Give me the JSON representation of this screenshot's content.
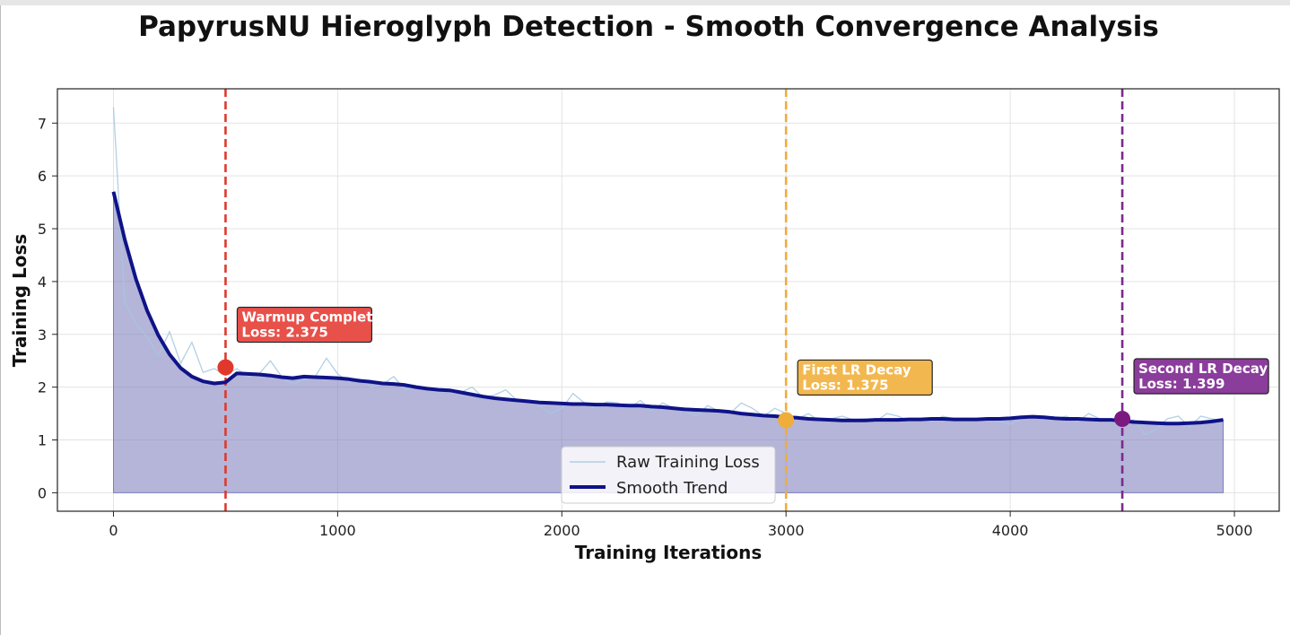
{
  "chart_data": {
    "type": "line",
    "title": "PapyrusNU Hieroglyph Detection - Smooth Convergence Analysis",
    "xlabel": "Training Iterations",
    "ylabel": "Training Loss",
    "xlim": [
      -250,
      5200
    ],
    "ylim": [
      -0.35,
      7.65
    ],
    "xticks": [
      0,
      1000,
      2000,
      3000,
      4000,
      5000
    ],
    "yticks": [
      0,
      1,
      2,
      3,
      4,
      5,
      6,
      7
    ],
    "grid": true,
    "legend_position": "lower-center",
    "series": [
      {
        "name": "Raw Training Loss",
        "color": "#a6c8e0",
        "x": [
          0,
          50,
          100,
          150,
          200,
          250,
          300,
          350,
          400,
          450,
          500,
          550,
          600,
          650,
          700,
          750,
          800,
          850,
          900,
          950,
          1000,
          1050,
          1100,
          1150,
          1200,
          1250,
          1300,
          1350,
          1400,
          1450,
          1500,
          1550,
          1600,
          1650,
          1700,
          1750,
          1800,
          1850,
          1900,
          1950,
          2000,
          2050,
          2100,
          2150,
          2200,
          2250,
          2300,
          2350,
          2400,
          2450,
          2500,
          2550,
          2600,
          2650,
          2700,
          2750,
          2800,
          2850,
          2900,
          2950,
          3000,
          3050,
          3100,
          3150,
          3200,
          3250,
          3300,
          3350,
          3400,
          3450,
          3500,
          3550,
          3600,
          3650,
          3700,
          3750,
          3800,
          3850,
          3900,
          3950,
          4000,
          4050,
          4100,
          4150,
          4200,
          4250,
          4300,
          4350,
          4400,
          4450,
          4500,
          4550,
          4600,
          4650,
          4700,
          4750,
          4800,
          4850,
          4900,
          4950
        ],
        "values": [
          7.3,
          3.6,
          3.2,
          2.95,
          2.6,
          3.05,
          2.45,
          2.85,
          2.28,
          2.35,
          2.22,
          2.35,
          2.2,
          2.25,
          2.5,
          2.2,
          2.05,
          2.15,
          2.2,
          2.55,
          2.25,
          2.1,
          2.15,
          2.0,
          2.05,
          2.2,
          1.95,
          2.0,
          1.95,
          1.9,
          1.95,
          1.9,
          2.0,
          1.8,
          1.85,
          1.95,
          1.75,
          1.72,
          1.65,
          1.5,
          1.6,
          1.88,
          1.7,
          1.6,
          1.72,
          1.7,
          1.6,
          1.75,
          1.55,
          1.7,
          1.6,
          1.55,
          1.45,
          1.65,
          1.55,
          1.5,
          1.7,
          1.6,
          1.45,
          1.6,
          1.5,
          1.4,
          1.5,
          1.35,
          1.4,
          1.45,
          1.38,
          1.4,
          1.35,
          1.5,
          1.45,
          1.35,
          1.38,
          1.35,
          1.45,
          1.4,
          1.35,
          1.38,
          1.42,
          1.35,
          1.3,
          1.4,
          1.45,
          1.38,
          1.4,
          1.45,
          1.35,
          1.5,
          1.4,
          1.35,
          1.3,
          1.38,
          1.1,
          1.2,
          1.4,
          1.45,
          1.25,
          1.45,
          1.4,
          1.35
        ]
      },
      {
        "name": "Smooth Trend",
        "color": "#0f1387",
        "fill_color": "#7d7fbd",
        "x": [
          0,
          50,
          100,
          150,
          200,
          250,
          300,
          350,
          400,
          450,
          500,
          550,
          600,
          650,
          700,
          750,
          800,
          850,
          900,
          950,
          1000,
          1050,
          1100,
          1150,
          1200,
          1250,
          1300,
          1350,
          1400,
          1450,
          1500,
          1550,
          1600,
          1650,
          1700,
          1750,
          1800,
          1850,
          1900,
          1950,
          2000,
          2050,
          2100,
          2150,
          2200,
          2250,
          2300,
          2350,
          2400,
          2450,
          2500,
          2550,
          2600,
          2650,
          2700,
          2750,
          2800,
          2850,
          2900,
          2950,
          3000,
          3050,
          3100,
          3150,
          3200,
          3250,
          3300,
          3350,
          3400,
          3450,
          3500,
          3550,
          3600,
          3650,
          3700,
          3750,
          3800,
          3850,
          3900,
          3950,
          4000,
          4050,
          4100,
          4150,
          4200,
          4250,
          4300,
          4350,
          4400,
          4450,
          4500,
          4550,
          4600,
          4650,
          4700,
          4750,
          4800,
          4850,
          4900,
          4950
        ],
        "values": [
          5.7,
          4.8,
          4.05,
          3.45,
          2.98,
          2.62,
          2.36,
          2.2,
          2.11,
          2.07,
          2.09,
          2.26,
          2.25,
          2.24,
          2.22,
          2.19,
          2.17,
          2.2,
          2.19,
          2.18,
          2.17,
          2.15,
          2.12,
          2.1,
          2.07,
          2.06,
          2.04,
          2.0,
          1.97,
          1.95,
          1.94,
          1.9,
          1.86,
          1.82,
          1.79,
          1.77,
          1.75,
          1.73,
          1.71,
          1.7,
          1.69,
          1.68,
          1.68,
          1.67,
          1.67,
          1.66,
          1.65,
          1.65,
          1.63,
          1.62,
          1.6,
          1.58,
          1.57,
          1.56,
          1.55,
          1.53,
          1.5,
          1.48,
          1.46,
          1.45,
          1.43,
          1.42,
          1.4,
          1.39,
          1.38,
          1.37,
          1.37,
          1.37,
          1.38,
          1.38,
          1.38,
          1.39,
          1.39,
          1.4,
          1.4,
          1.39,
          1.39,
          1.39,
          1.4,
          1.4,
          1.41,
          1.43,
          1.44,
          1.43,
          1.41,
          1.4,
          1.4,
          1.39,
          1.38,
          1.38,
          1.36,
          1.34,
          1.33,
          1.32,
          1.31,
          1.31,
          1.32,
          1.33,
          1.35,
          1.38
        ]
      }
    ],
    "vlines": [
      {
        "x": 500,
        "color": "#e0392b"
      },
      {
        "x": 3000,
        "color": "#f0ad3a"
      },
      {
        "x": 4500,
        "color": "#7b2a8c"
      }
    ],
    "annotations": [
      {
        "title": "Warmup Complete",
        "loss_text": "Loss: 2.375",
        "x": 500,
        "y": 2.375,
        "color": "#e8504a",
        "marker_color": "#e0392b"
      },
      {
        "title": "First LR Decay",
        "loss_text": "Loss: 1.375",
        "x": 3000,
        "y": 1.375,
        "color": "#f2b84f",
        "marker_color": "#f0ad3a"
      },
      {
        "title": "Second LR Decay",
        "loss_text": "Loss: 1.399",
        "x": 4500,
        "y": 1.399,
        "color": "#8b3d9b",
        "marker_color": "#7a1a80"
      }
    ]
  }
}
